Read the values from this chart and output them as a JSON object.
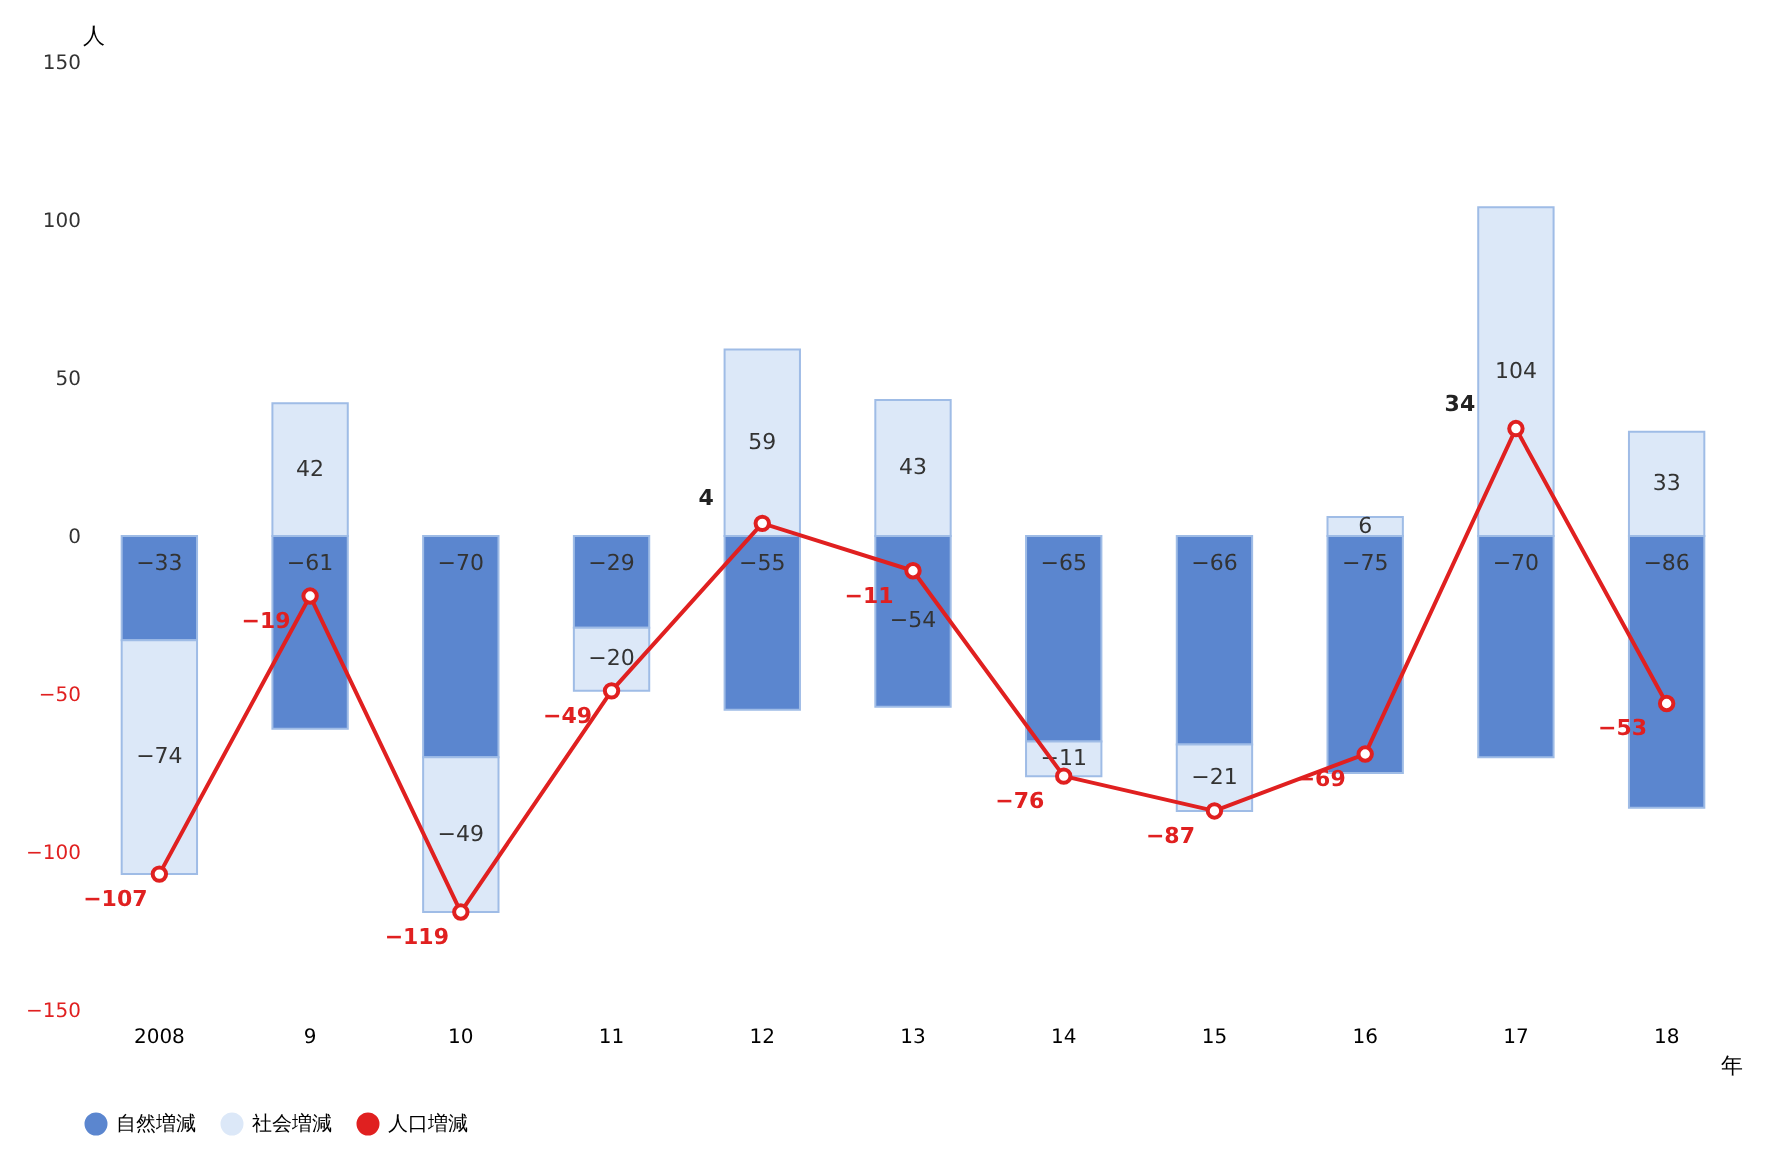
{
  "chart_data": {
    "type": "bar",
    "stacked": true,
    "xlabel": "年",
    "ylabel": "人",
    "categories": [
      "2008",
      "9",
      "10",
      "11",
      "12",
      "13",
      "14",
      "15",
      "16",
      "17",
      "18"
    ],
    "series": [
      {
        "name": "自然増減",
        "color": "#5b86cf",
        "values": [
          -33,
          -61,
          -70,
          -29,
          -55,
          -54,
          -65,
          -66,
          -75,
          -70,
          -86
        ]
      },
      {
        "name": "社会増減",
        "color": "#dce8f8",
        "values": [
          -74,
          42,
          -49,
          -20,
          59,
          43,
          -11,
          -21,
          6,
          104,
          33
        ]
      },
      {
        "name": "人口増減",
        "type": "line",
        "color": "#e02020",
        "marker": "circle",
        "line_style": "solid",
        "values": [
          -107,
          -19,
          -119,
          -49,
          4,
          -11,
          -76,
          -87,
          -69,
          34,
          -53
        ]
      }
    ],
    "ylim": [
      -150,
      150
    ],
    "yticks": [
      -150,
      -100,
      -50,
      0,
      50,
      100,
      150
    ],
    "data_labels": true,
    "grid": false,
    "legend": "bottom"
  }
}
